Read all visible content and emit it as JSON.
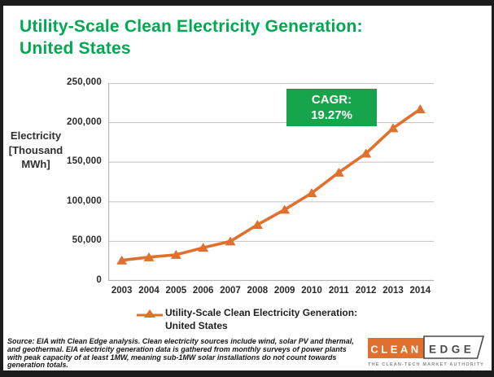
{
  "title": {
    "line1": "Utility-Scale Clean Electricity Generation:",
    "line2": "United States"
  },
  "y_axis_title_lines": [
    "Electricity",
    "[Thousand",
    "MWh]"
  ],
  "cagr": {
    "label": "CAGR:",
    "value": "19.27%"
  },
  "legend": {
    "line1": "Utility-Scale Clean Electricity Generation:",
    "line2": "United States"
  },
  "source_note": "Source: EIA with Clean Edge analysis. Clean electricity sources include wind, solar PV and thermal, and geothermal. EIA electricity generation data is gathered from monthly surveys of power plants with peak capacity of at least 1MW, meaning sub-1MW solar installations do not count towards generation totals.",
  "logo": {
    "clean": "CLEAN",
    "edge": "EDGE",
    "tagline": "THE CLEAN-TECH MARKET AUTHORITY"
  },
  "colors": {
    "title_green": "#00a851",
    "cagr_green": "#16a54b",
    "line_orange": "#e0702d",
    "grid_gray": "#c9c9c9",
    "axis_gray": "#b5b5b5",
    "frame_black": "#1c1c1c",
    "logo_text_gray": "#4a4a4a",
    "tagline_gray": "#8a8a8a"
  },
  "chart_data": {
    "type": "line",
    "categories": [
      "2003",
      "2004",
      "2005",
      "2006",
      "2007",
      "2008",
      "2009",
      "2010",
      "2011",
      "2012",
      "2013",
      "2014"
    ],
    "series": [
      {
        "name": "Utility-Scale Clean Electricity Generation: United States",
        "values": [
          26000,
          30000,
          33000,
          42000,
          50000,
          71000,
          90000,
          111000,
          137000,
          161000,
          193000,
          217000
        ]
      }
    ],
    "title": "Utility-Scale Clean Electricity Generation: United States",
    "xlabel": "",
    "ylabel": "Electricity (Thousand MWh)",
    "ylim": [
      0,
      250000
    ],
    "yticks": [
      0,
      50000,
      100000,
      150000,
      200000,
      250000
    ],
    "ytick_labels": [
      "0",
      "50,000",
      "100,000",
      "150,000",
      "200,000",
      "250,000"
    ],
    "grid": true,
    "marker": "triangle-up",
    "annotation": "CAGR: 19.27%",
    "legend_position": "bottom"
  }
}
